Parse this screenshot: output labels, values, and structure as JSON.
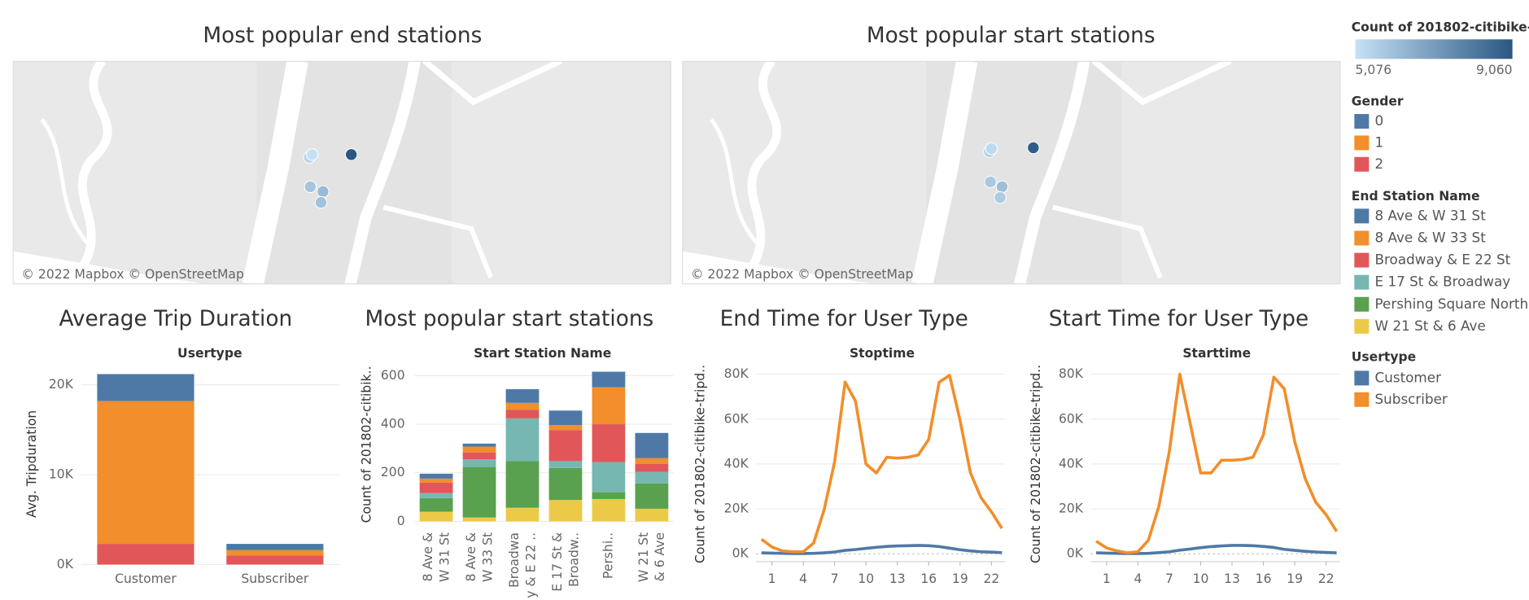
{
  "legends": {
    "color": {
      "title": "Count of 201802-citibike-..",
      "min": {
        "value": 5076,
        "label": "5,076"
      },
      "max": {
        "value": 9060,
        "label": "9,060"
      },
      "colors": [
        "#c6e1f5",
        "#2a5783"
      ]
    },
    "gender_title": "Gender",
    "station_title": "End Station Name",
    "usertype_title": "Usertype"
  },
  "chart_data": [
    {
      "type": "map",
      "title": "Most popular end stations",
      "attribution": "© 2022 Mapbox © OpenStreetMap",
      "values": [
        5400,
        5076,
        9060,
        5900,
        6200,
        6000
      ]
    },
    {
      "type": "map",
      "title": "Most popular start stations",
      "attribution": "© 2022 Mapbox © OpenStreetMap",
      "values": [
        5500,
        5300,
        8900,
        5800,
        6100,
        5700
      ]
    },
    {
      "type": "bar",
      "stacked": true,
      "title": "Average Trip Duration",
      "header": "Usertype",
      "ylabel": "Avg. Tripduration",
      "categories": [
        "Customer",
        "Subscriber"
      ],
      "series": [
        {
          "name": "0",
          "color": "#4e79a7",
          "values": [
            3000,
            700
          ]
        },
        {
          "name": "1",
          "color": "#f28e2b",
          "values": [
            15900,
            600
          ]
        },
        {
          "name": "2",
          "color": "#e15759",
          "values": [
            2300,
            1000
          ]
        }
      ],
      "ylim": [
        0,
        22600
      ],
      "yticks": [
        {
          "value": 0,
          "label": "0K"
        },
        {
          "value": 10000,
          "label": "10K"
        },
        {
          "value": 20000,
          "label": "20K"
        }
      ],
      "grid": true
    },
    {
      "type": "bar",
      "stacked": true,
      "title": "Most popular start stations",
      "header": "Start Station Name",
      "ylabel": "Count of 201802-citibik..",
      "categories": [
        [
          "8 Ave &",
          "W 31 St"
        ],
        [
          "8 Ave &",
          "W 33 St"
        ],
        [
          "Broadwa",
          "y & E 22 .."
        ],
        [
          "E 17 St &",
          "Broadw.."
        ],
        [
          "Pershi.."
        ],
        [
          "W 21 St",
          "& 6 Ave"
        ]
      ],
      "series": [
        {
          "name": "8 Ave & W 31 St",
          "color": "#4e79a7",
          "values": [
            20,
            12,
            56,
            60,
            64,
            104
          ]
        },
        {
          "name": "8 Ave & W 33 St",
          "color": "#f28e2b",
          "values": [
            16,
            24,
            28,
            20,
            152,
            24
          ]
        },
        {
          "name": "Broadway & E 22 St",
          "color": "#e15759",
          "values": [
            44,
            28,
            36,
            128,
            156,
            32
          ]
        },
        {
          "name": "E 17 St & Broadway",
          "color": "#76b7b2",
          "values": [
            20,
            32,
            176,
            28,
            124,
            48
          ]
        },
        {
          "name": "Pershing Square North",
          "color": "#59a14f",
          "values": [
            56,
            208,
            192,
            132,
            28,
            104
          ]
        },
        {
          "name": "W 21 St & 6 Ave",
          "color": "#edc948",
          "values": [
            40,
            16,
            56,
            88,
            92,
            52
          ]
        }
      ],
      "ylim": [
        -25,
        650
      ],
      "yticks": [
        0,
        200,
        400,
        600
      ],
      "grid": true
    },
    {
      "type": "line",
      "title": "End Time for User Type",
      "header": "Stoptime",
      "ylabel": "Count of 201802-citibike-tripd..",
      "x": [
        0,
        1,
        2,
        3,
        4,
        5,
        6,
        7,
        8,
        9,
        10,
        11,
        12,
        13,
        14,
        15,
        16,
        17,
        18,
        19,
        20,
        21,
        22,
        23
      ],
      "series": [
        {
          "name": "Customer",
          "color": "#4e79a7",
          "values": [
            400,
            300,
            200,
            100,
            100,
            200,
            400,
            800,
            1500,
            1900,
            2400,
            2900,
            3300,
            3500,
            3600,
            3700,
            3600,
            3200,
            2500,
            1800,
            1300,
            900,
            700,
            500
          ]
        },
        {
          "name": "Subscriber",
          "color": "#f28e2b",
          "values": [
            6500,
            3000,
            1300,
            900,
            900,
            4800,
            19600,
            41000,
            76500,
            68000,
            40000,
            36000,
            43000,
            42600,
            43000,
            44000,
            51000,
            76500,
            79500,
            59500,
            36000,
            25000,
            18700,
            11300
          ]
        }
      ],
      "xlim": [
        -0.5,
        23.3
      ],
      "xticks": [
        1,
        4,
        7,
        10,
        13,
        16,
        19,
        22
      ],
      "ylim": [
        -3500,
        83500
      ],
      "yticks": [
        {
          "value": 0,
          "label": "0K"
        },
        {
          "value": 20000,
          "label": "20K"
        },
        {
          "value": 40000,
          "label": "40K"
        },
        {
          "value": 60000,
          "label": "60K"
        },
        {
          "value": 80000,
          "label": "80K"
        }
      ],
      "grid": true
    },
    {
      "type": "line",
      "title": "Start Time for User Type",
      "header": "Starttime",
      "ylabel": "Count of 201802-citibike-tripd..",
      "x": [
        0,
        1,
        2,
        3,
        4,
        5,
        6,
        7,
        8,
        9,
        10,
        11,
        12,
        13,
        14,
        15,
        16,
        17,
        18,
        19,
        20,
        21,
        22,
        23
      ],
      "series": [
        {
          "name": "Customer",
          "color": "#4e79a7",
          "values": [
            400,
            300,
            200,
            100,
            100,
            200,
            500,
            900,
            1600,
            2100,
            2700,
            3200,
            3500,
            3700,
            3700,
            3600,
            3300,
            2800,
            2000,
            1500,
            1100,
            800,
            600,
            400
          ]
        },
        {
          "name": "Subscriber",
          "color": "#f28e2b",
          "values": [
            5600,
            2600,
            1300,
            400,
            900,
            6000,
            21000,
            45600,
            80000,
            58000,
            36000,
            36000,
            41700,
            41700,
            42000,
            43000,
            53000,
            78700,
            73500,
            50000,
            33500,
            23000,
            17400,
            10000
          ]
        }
      ],
      "xlim": [
        -0.5,
        23.3
      ],
      "xticks": [
        1,
        4,
        7,
        10,
        13,
        16,
        19,
        22
      ],
      "ylim": [
        -3500,
        83500
      ],
      "yticks": [
        {
          "value": 0,
          "label": "0K"
        },
        {
          "value": 20000,
          "label": "20K"
        },
        {
          "value": 40000,
          "label": "40K"
        },
        {
          "value": 60000,
          "label": "60K"
        },
        {
          "value": 80000,
          "label": "80K"
        }
      ],
      "grid": true
    }
  ]
}
